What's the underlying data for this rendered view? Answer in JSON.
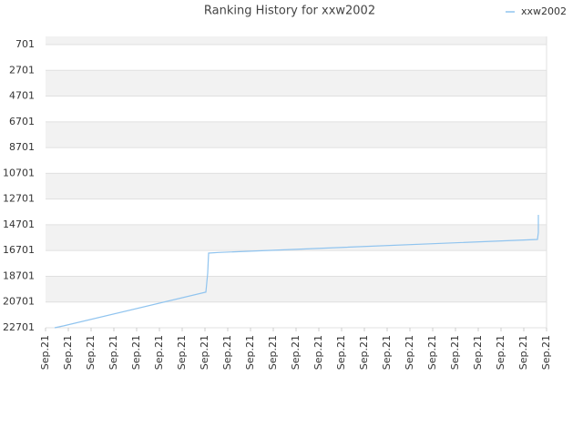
{
  "chart_data": {
    "type": "line",
    "title": "Ranking History for xxw2002",
    "x": [
      0.4,
      0.8,
      7.04,
      7.12,
      7.16,
      7.6,
      21.6,
      21.64,
      21.64
    ],
    "series": [
      {
        "name": "xxw2002",
        "color": "#90c4ef",
        "values": [
          22701,
          22550,
          19930,
          18460,
          16900,
          16850,
          15840,
          15300,
          13930
        ]
      }
    ],
    "xlim": [
      0,
      22
    ],
    "xticks": [
      {
        "value": 0,
        "label": "Sep.21"
      },
      {
        "value": 1,
        "label": "Sep.21"
      },
      {
        "value": 2,
        "label": "Sep.21"
      },
      {
        "value": 3,
        "label": "Sep.21"
      },
      {
        "value": 4,
        "label": "Sep.21"
      },
      {
        "value": 5,
        "label": "Sep.21"
      },
      {
        "value": 6,
        "label": "Sep.21"
      },
      {
        "value": 7,
        "label": "Sep.21"
      },
      {
        "value": 8,
        "label": "Sep.21"
      },
      {
        "value": 9,
        "label": "Sep.21"
      },
      {
        "value": 10,
        "label": "Sep.21"
      },
      {
        "value": 11,
        "label": "Sep.21"
      },
      {
        "value": 12,
        "label": "Sep.21"
      },
      {
        "value": 13,
        "label": "Sep.21"
      },
      {
        "value": 14,
        "label": "Sep.21"
      },
      {
        "value": 15,
        "label": "Sep.21"
      },
      {
        "value": 16,
        "label": "Sep.21"
      },
      {
        "value": 17,
        "label": "Sep.21"
      },
      {
        "value": 18,
        "label": "Sep.21"
      },
      {
        "value": 19,
        "label": "Sep.21"
      },
      {
        "value": 20,
        "label": "Sep.21"
      },
      {
        "value": 21,
        "label": "Sep.21"
      },
      {
        "value": 22,
        "label": "Sep.21"
      }
    ],
    "ylim": [
      22701,
      64
    ],
    "yticks": [
      701,
      2701,
      4701,
      6701,
      8701,
      10701,
      12701,
      14701,
      16701,
      18701,
      20701,
      22701
    ],
    "grid": true,
    "legend": "top-right"
  }
}
